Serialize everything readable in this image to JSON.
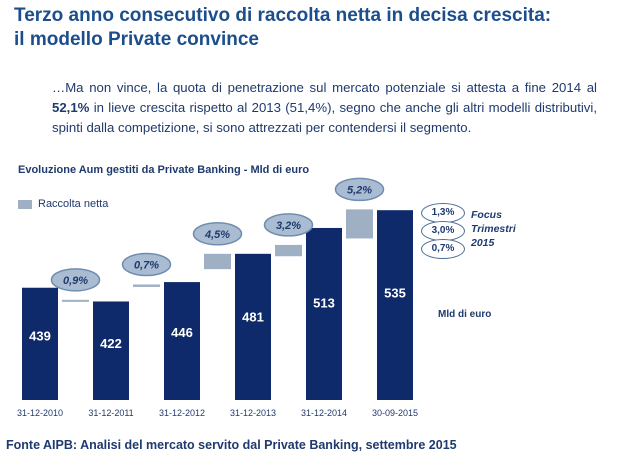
{
  "header": {
    "title_line1": "Terzo anno consecutivo di raccolta netta in decisa crescita:",
    "title_line2": "il modello Private convince"
  },
  "intro": {
    "part1": "…Ma non vince, la quota di penetrazione sul mercato potenziale si attesta a fine 2014 al ",
    "highlight": "52,1%",
    "part2": " in lieve crescita rispetto al 2013 (51,4%), segno che anche gli altri modelli distributivi, spinti dalla competizione, si sono attrezzati per contendersi il segmento."
  },
  "chart_data": {
    "type": "bar",
    "title": "Evoluzione Aum gestiti da Private Banking - Mld di euro",
    "categories": [
      "31-12-2010",
      "31-12-2011",
      "31-12-2012",
      "31-12-2013",
      "31-12-2014",
      "30-09-2015"
    ],
    "values": [
      439,
      422,
      446,
      481,
      513,
      535
    ],
    "value_labels": [
      "439",
      "422",
      "446",
      "481",
      "513",
      "535"
    ],
    "growth_labels": [
      "0,9%",
      "0,7%",
      "4,5%",
      "3,2%",
      "5,2%"
    ],
    "net_inflow_steps": [
      {
        "from": 422,
        "to": 424
      },
      {
        "from": 440,
        "to": 443
      },
      {
        "from": 462,
        "to": 481
      },
      {
        "from": 478,
        "to": 492
      },
      {
        "from": 500,
        "to": 536
      }
    ],
    "legend": "Raccolta netta",
    "unit": "Mld di euro",
    "ylim": [
      300,
      560
    ],
    "colors": {
      "bar": "#0f2a6b",
      "inflow": "#9fb0c5",
      "bubble": "#aabcd1",
      "bubble_border": "#6f8db0"
    }
  },
  "focus": {
    "values": [
      "1,3%",
      "3,0%",
      "0,7%"
    ],
    "label_line1": "Focus",
    "label_line2": "Trimestri",
    "label_line3": "2015"
  },
  "footer": {
    "source": "Fonte AIPB: Analisi del mercato servito dal Private Banking, settembre 2015"
  }
}
